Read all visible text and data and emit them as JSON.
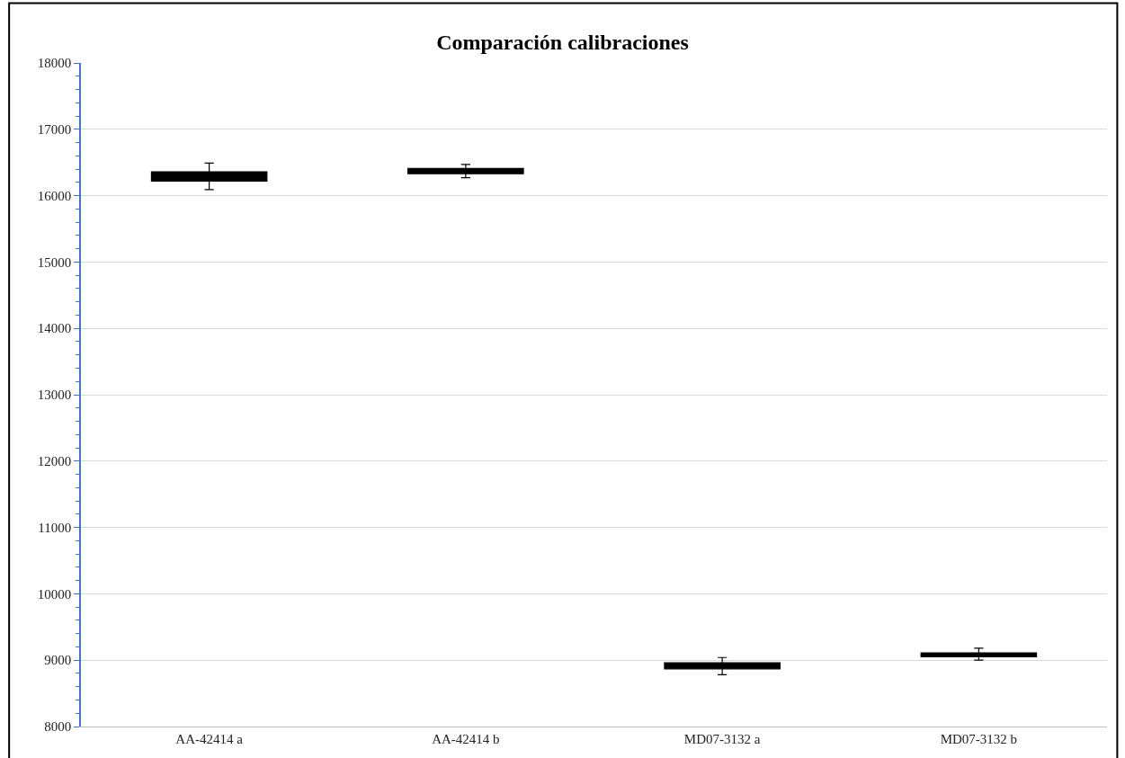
{
  "chart_data": {
    "type": "box",
    "title": "Comparación calibraciones",
    "categories": [
      "AA-42414 a",
      "AA-42414 b",
      "MD07-3132 a",
      "MD07-3132 b"
    ],
    "color": "#000000",
    "boxes": [
      {
        "low": 16090,
        "q1": 16220,
        "median": 16290,
        "q3": 16360,
        "high": 16490
      },
      {
        "low": 16270,
        "q1": 16330,
        "median": 16370,
        "q3": 16410,
        "high": 16470
      },
      {
        "low": 8780,
        "q1": 8870,
        "median": 8910,
        "q3": 8960,
        "high": 9040
      },
      {
        "low": 9000,
        "q1": 9050,
        "median": 9090,
        "q3": 9110,
        "high": 9180
      }
    ],
    "ylim": [
      8000,
      18000
    ],
    "yticks": [
      8000,
      9000,
      10000,
      11000,
      12000,
      13000,
      14000,
      15000,
      16000,
      17000,
      18000
    ],
    "grid": "y"
  }
}
